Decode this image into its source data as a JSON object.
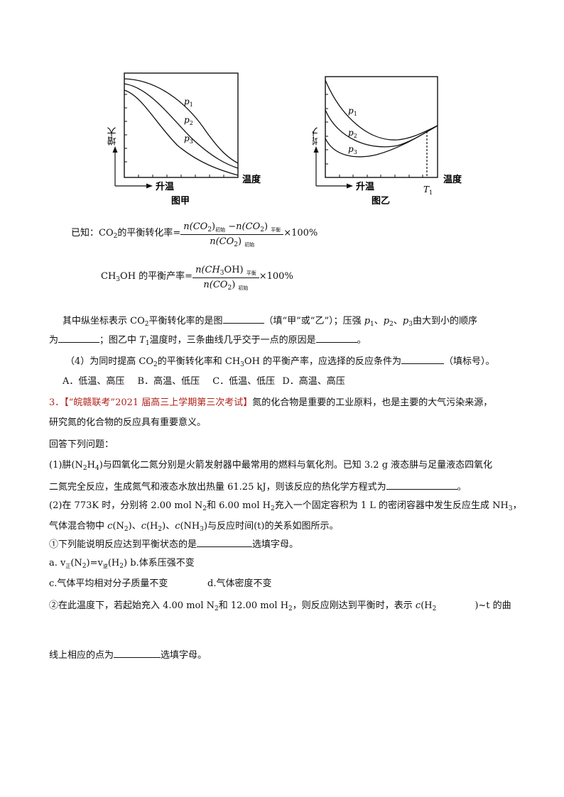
{
  "figures": {
    "jia": {
      "caption": "图甲",
      "y_label": "增大",
      "x_arrow_label": "升温",
      "x_label": "温度",
      "curves": [
        "p1",
        "p2",
        "p3"
      ]
    },
    "yi": {
      "caption": "图乙",
      "y_label": "增大",
      "x_arrow_label": "升温",
      "x_label": "温度",
      "marker": "T1",
      "curves": [
        "p1",
        "p2",
        "p3"
      ]
    }
  },
  "formula1": {
    "prefix": "已知：CO",
    "prefix2": "的平衡转化率=",
    "num_a": "n(CO",
    "sub_init": "初始",
    "minus": "−",
    "num_b": "n(CO",
    "sub_eq": "平衡",
    "den": "n(CO",
    "tail": "×100%"
  },
  "formula2": {
    "prefix": "CH",
    "prefix2": "OH 的平衡产率=",
    "num": "n(CH",
    "num2": "OH)",
    "sub_eq": "平衡",
    "den": "n(CO",
    "sub_init": "初始",
    "tail": "×100%"
  },
  "q3": {
    "l1a": "其中纵坐标表示 CO",
    "l1b": "平衡转化率的是图",
    "l1c": "（填“甲”或“乙”）；压强 ",
    "l1d": "由大到小的顺序",
    "l2a": "为",
    "l2b": "；图乙中 ",
    "l2c": "温度时，三条曲线几乎交于一点的原因是",
    "l2d": "。",
    "q4a": "（4）为同时提高 CO",
    "q4b": "的平衡转化率和 CH",
    "q4c": "OH 的平衡产率，应选择的反应条件为",
    "q4d": "（填标号）。",
    "options": [
      "A．低温、高压",
      "B．高温、低压",
      "C．低温、低压",
      "D．高温、高压"
    ]
  },
  "q_next": {
    "number": "3．",
    "source": "【“皖赣联考”2021 届高三上学期第三次考试】",
    "intro1": "氮的化合物是重要的工业原料，也是主要的大气污染来源，",
    "intro2": "研究氮的化合物的反应具有重要意义。",
    "answer_prompt": "回答下列问题：",
    "p1a": "(1)肼(N",
    "p1b": "H",
    "p1c": ")与四氧化二氮分别是火箭发射器中最常用的燃料与氧化剂。已知 3.2 g 液态肼与足量液态四氧化",
    "p1d": "二氮完全反应，生成氮气和液态水放出热量 61.25 kJ，则该反应的热化学方程式为",
    "p1e": "。",
    "p2a": "(2)在 773K 时，分别将 2.00 mol N",
    "p2b": "和 6.00 mol H",
    "p2c": "充入一个固定容积为 1 L 的密闭容器中发生反应生成 NH",
    "p2d": "，",
    "p2e": "气体混合物中 ",
    "p2f": "(N",
    "p2g": ")、",
    "p2h": "(H",
    "p2i": ")、",
    "p2j": "(NH",
    "p2k": ")与反应时间(t)的关系如图所示。",
    "s1a": "①下列能说明反应达到平衡状态的是",
    "s1b": "选填字母。",
    "opt_a1": "a. v",
    "opt_a_sub1": "正",
    "opt_a2": "(N",
    "opt_a3": ")=v",
    "opt_a_sub2": "逆",
    "opt_a4": "(H",
    "opt_a5": ")",
    "opt_b": "b.体系压强不变",
    "opt_c": "c.气体平均相对分子质量不变",
    "opt_d": "d.气体密度不变",
    "s2a": "②在此温度下，若起始充入 4.00 mol N",
    "s2b": "和 12.00 mol H",
    "s2c": "，则反应刚达到平衡时，表示 ",
    "s2d": "(H",
    "s2e": ")~t 的曲",
    "s3a": "线上相应的点为",
    "s3b": "选填字母。"
  }
}
